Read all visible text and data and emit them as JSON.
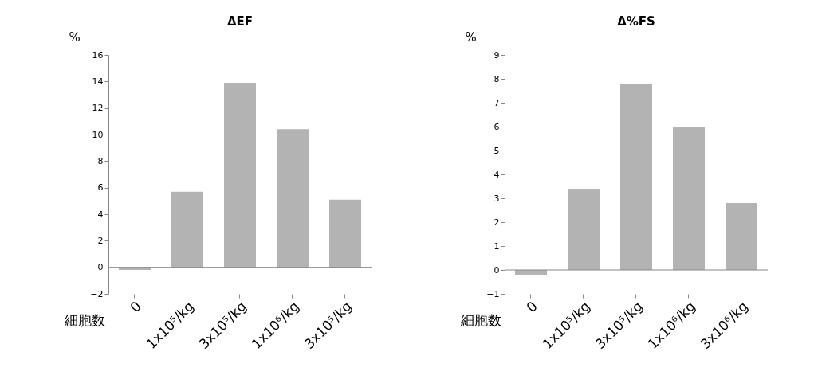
{
  "chart_data": [
    {
      "type": "bar",
      "title": "ΔEF",
      "ylabel": "%",
      "xlabel": "細胞数",
      "categories": [
        "0",
        "1x10⁵/kg",
        "3x10⁵/kg",
        "1x10⁶/kg",
        "3x10⁵/kg"
      ],
      "values": [
        -0.2,
        5.7,
        13.9,
        10.4,
        5.1
      ],
      "color": "#b3b3b3",
      "ylim": [
        -2,
        16
      ],
      "yticks": [
        -2,
        0,
        2,
        4,
        6,
        8,
        10,
        12,
        14,
        16
      ],
      "grid": false
    },
    {
      "type": "bar",
      "title": "Δ%FS",
      "ylabel": "%",
      "xlabel": "細胞数",
      "categories": [
        "0",
        "1x10⁵/kg",
        "3x10⁵/kg",
        "1x10⁶/kg",
        "3x10⁶/kg"
      ],
      "values": [
        -0.2,
        3.4,
        7.8,
        6.0,
        2.8
      ],
      "color": "#b3b3b3",
      "ylim": [
        -1,
        9
      ],
      "yticks": [
        -1,
        0,
        1,
        2,
        3,
        4,
        5,
        6,
        7,
        8,
        9
      ],
      "grid": false
    }
  ]
}
